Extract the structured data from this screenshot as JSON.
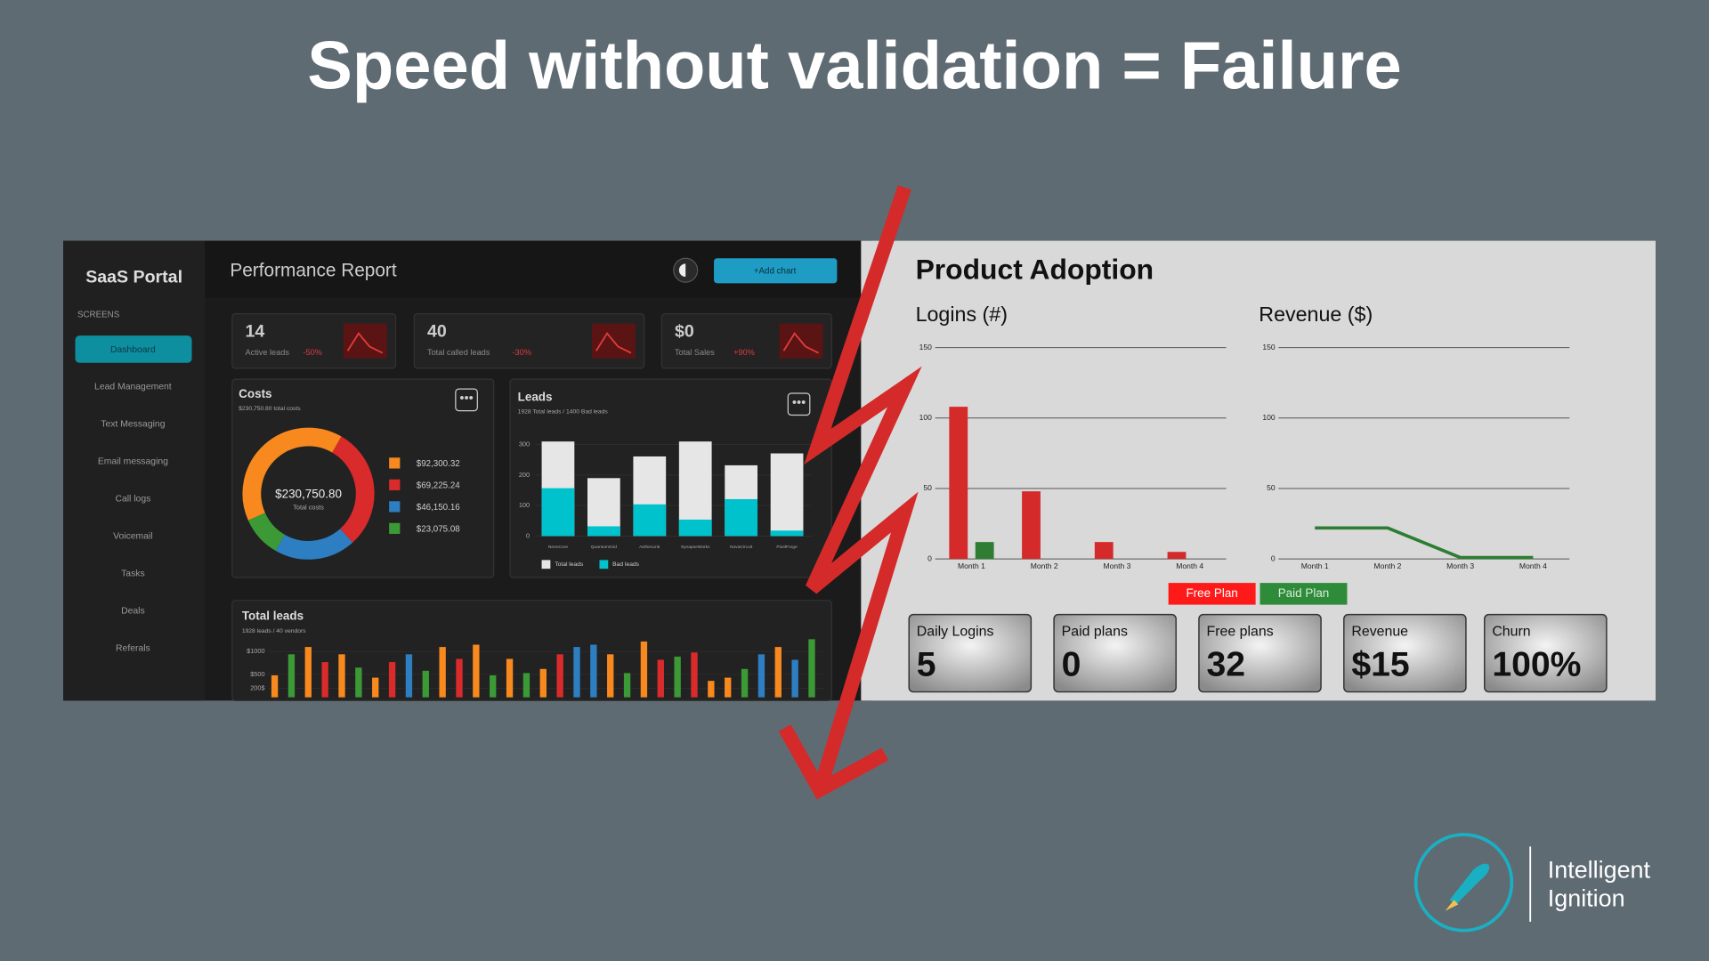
{
  "title": "Speed without validation = Failure",
  "dashboard": {
    "brand": "SaaS Portal",
    "section": "SCREENS",
    "nav": [
      "Dashboard",
      "Lead Management",
      "Text Messaging",
      "Email messaging",
      "Call logs",
      "Voicemail",
      "Tasks",
      "Deals",
      "Referals"
    ],
    "page_title": "Performance Report",
    "button": "+Add chart",
    "kpis": [
      {
        "value": "14",
        "label": "Active leads",
        "change": "-50%"
      },
      {
        "value": "40",
        "label": "Total called leads",
        "change": "-30%"
      },
      {
        "value": "$0",
        "label": "Total Sales",
        "change": "+90%"
      }
    ],
    "costs": {
      "type": "pie",
      "title": "Costs",
      "subtitle": "$230,750.80 total costs",
      "center_value": "$230,750.80",
      "center_label": "Total costs",
      "values": [
        92300.32,
        69225.24,
        46150.16,
        23075.08
      ],
      "value_labels": [
        "$92,300.32",
        "$69,225.24",
        "$46,150.16",
        "$23,075.08"
      ],
      "colors": [
        "#f7891e",
        "#d92b2b",
        "#2e7fc1",
        "#3b9a36"
      ]
    },
    "leads": {
      "type": "bar",
      "title": "Leads",
      "subtitle": "1928 Total leads / 1400 Bad leads",
      "categories": [
        "NeonCore",
        "QuantumGrid",
        "AetherLink",
        "SynapseWorks",
        "NovaCircuit",
        "PixelForge"
      ],
      "series": [
        {
          "name": "Total leads",
          "color": "#e6e6e6",
          "values": [
            310,
            190,
            261,
            310,
            232,
            271
          ]
        },
        {
          "name": "Bad leads",
          "color": "#00c2cc",
          "values": [
            157,
            32,
            104,
            54,
            121,
            18
          ]
        }
      ],
      "ylim": [
        0,
        320
      ],
      "yticks": [
        0,
        100,
        200,
        300
      ]
    },
    "total_leads": {
      "type": "bar",
      "title": "Total leads",
      "subtitle": "1928 leads / 40 vendors",
      "values": [
        480,
        940,
        1100,
        770,
        940,
        650,
        430,
        770,
        940,
        580,
        1100,
        840,
        1150,
        480,
        840,
        530,
        620,
        940,
        1100,
        1150,
        940,
        530,
        1220,
        820,
        890,
        980,
        360,
        430,
        620,
        940,
        1100,
        820,
        1270
      ],
      "colors": [
        "#f7891e",
        "#3b9a36",
        "#f7891e",
        "#d92b2b",
        "#f7891e",
        "#3b9a36",
        "#f7891e",
        "#d92b2b",
        "#2e7fc1",
        "#3b9a36",
        "#f7891e",
        "#d92b2b",
        "#f7891e",
        "#3b9a36",
        "#f7891e",
        "#3b9a36",
        "#f7891e",
        "#d92b2b",
        "#2e7fc1",
        "#2e7fc1",
        "#f7891e",
        "#3b9a36",
        "#f7891e",
        "#d92b2b",
        "#3b9a36",
        "#d92b2b",
        "#f7891e",
        "#f7891e",
        "#3b9a36",
        "#2e7fc1",
        "#f7891e",
        "#2e7fc1",
        "#3b9a36"
      ],
      "ylim": [
        0,
        1500
      ],
      "yticks": [
        {
          "value": 200,
          "label": "200$"
        },
        {
          "value": 500,
          "label": "$500"
        },
        {
          "value": 1000,
          "label": "$1000"
        }
      ]
    }
  },
  "product_adoption": {
    "title": "Product Adoption",
    "charts": [
      {
        "type": "bar",
        "title": "Logins (#)",
        "categories": [
          "Month 1",
          "Month 2",
          "Month 3",
          "Month 4"
        ],
        "series": [
          {
            "name": "Free Plan",
            "color": "#d42a2a",
            "legend_color": "#ff1a1a",
            "values": [
              108,
              48,
              12,
              5
            ]
          },
          {
            "name": "Paid Plan",
            "color": "#2e7d32",
            "legend_color": "#2e8b3a",
            "values": [
              12,
              0,
              0,
              0
            ]
          }
        ],
        "ylim": [
          0,
          150
        ],
        "yticks": [
          0,
          50,
          100,
          150
        ]
      },
      {
        "type": "line",
        "title": "Revenue ($)",
        "categories": [
          "Month 1",
          "Month 2",
          "Month 3",
          "Month 4"
        ],
        "series": [
          {
            "color": "#2e7d32",
            "values": [
              22,
              22,
              1,
              1
            ]
          }
        ],
        "ylim": [
          0,
          150
        ],
        "yticks": [
          0,
          50,
          100,
          150
        ]
      }
    ],
    "metrics": [
      {
        "label": "Daily Logins",
        "value": "5"
      },
      {
        "label": "Paid plans",
        "value": "0"
      },
      {
        "label": "Free plans",
        "value": "32"
      },
      {
        "label": "Revenue",
        "value": "$15"
      },
      {
        "label": "Churn",
        "value": "100%"
      }
    ]
  },
  "logo": [
    "Intelligent",
    "Ignition"
  ]
}
